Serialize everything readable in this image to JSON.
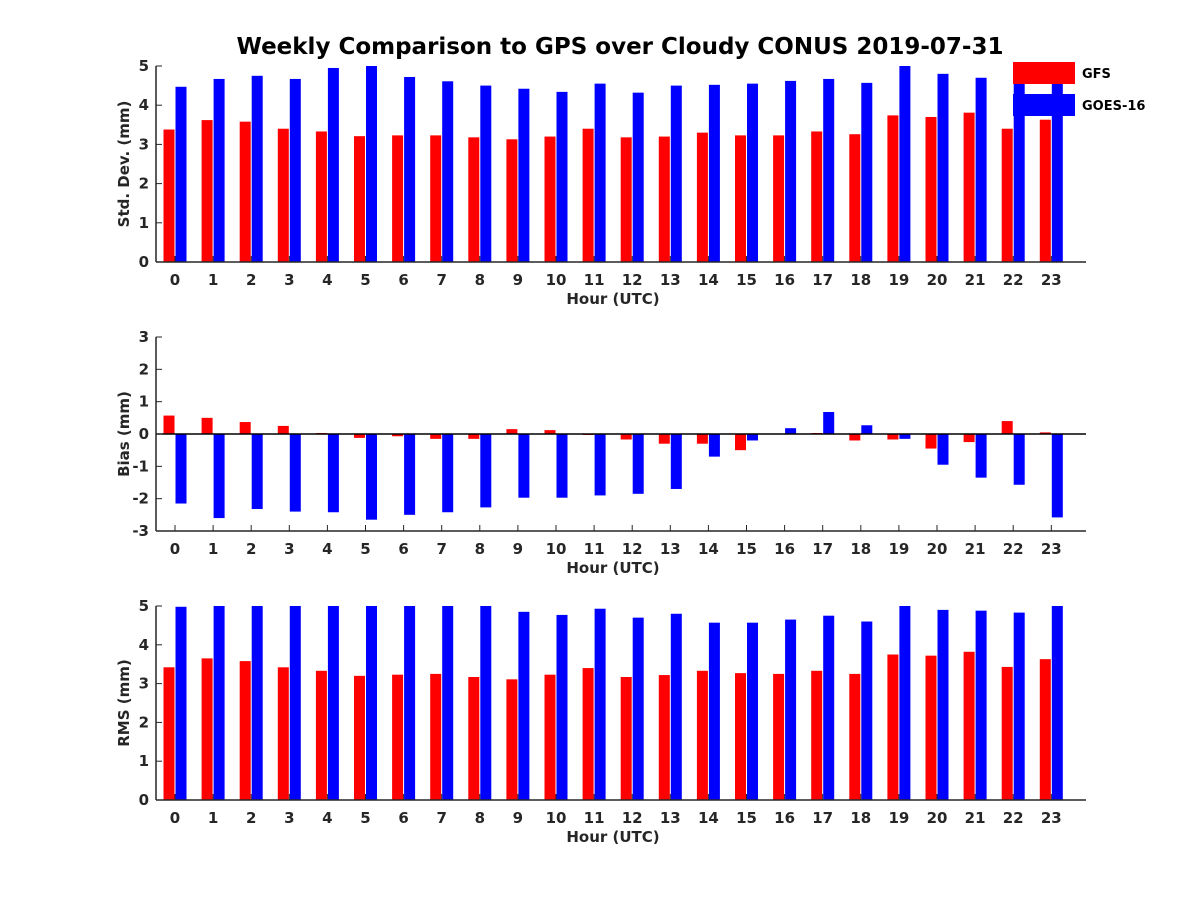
{
  "figure": {
    "title": "Weekly Comparison to GPS over Cloudy CONUS 2019-07-31"
  },
  "legend": {
    "placement": "top-right, outside first panel",
    "entries": [
      {
        "label": "GFS",
        "color": "#ff0000"
      },
      {
        "label": "GOES-16",
        "color": "#0000ff"
      }
    ]
  },
  "chart_data": [
    {
      "type": "bar",
      "categories": [
        "0",
        "1",
        "2",
        "3",
        "4",
        "5",
        "6",
        "7",
        "8",
        "9",
        "10",
        "11",
        "12",
        "13",
        "14",
        "15",
        "16",
        "17",
        "18",
        "19",
        "20",
        "21",
        "22",
        "23"
      ],
      "xlabel": "Hour (UTC)",
      "ylabel": "Std. Dev. (mm)",
      "ylim": [
        0,
        5
      ],
      "yticks": [
        "0",
        "1",
        "2",
        "3",
        "4",
        "5"
      ],
      "grid": false,
      "series": [
        {
          "name": "GFS",
          "color": "#ff0000",
          "values": [
            3.38,
            3.62,
            3.58,
            3.4,
            3.33,
            3.21,
            3.23,
            3.23,
            3.18,
            3.13,
            3.2,
            3.4,
            3.18,
            3.2,
            3.3,
            3.23,
            3.23,
            3.33,
            3.26,
            3.74,
            3.7,
            3.81,
            3.4,
            3.63
          ]
        },
        {
          "name": "GOES-16",
          "color": "#0000ff",
          "values": [
            4.47,
            4.67,
            4.75,
            4.67,
            4.95,
            5.0,
            4.72,
            4.61,
            4.5,
            4.42,
            4.34,
            4.55,
            4.32,
            4.5,
            4.52,
            4.55,
            4.62,
            4.67,
            4.57,
            5.0,
            4.8,
            4.7,
            4.55,
            4.62
          ]
        }
      ]
    },
    {
      "type": "bar",
      "categories": [
        "0",
        "1",
        "2",
        "3",
        "4",
        "5",
        "6",
        "7",
        "8",
        "9",
        "10",
        "11",
        "12",
        "13",
        "14",
        "15",
        "16",
        "17",
        "18",
        "19",
        "20",
        "21",
        "22",
        "23"
      ],
      "xlabel": "Hour (UTC)",
      "ylabel": "Bias (mm)",
      "ylim": [
        -3,
        3
      ],
      "yticks": [
        "-3",
        "-2",
        "-1",
        "0",
        "1",
        "2",
        "3"
      ],
      "grid": false,
      "zero_line": true,
      "series": [
        {
          "name": "GFS",
          "color": "#ff0000",
          "values": [
            0.57,
            0.5,
            0.37,
            0.25,
            0.03,
            -0.12,
            -0.07,
            -0.15,
            -0.15,
            0.15,
            0.12,
            -0.03,
            -0.17,
            -0.3,
            -0.3,
            -0.5,
            0.0,
            0.03,
            -0.2,
            -0.17,
            -0.45,
            -0.25,
            0.4,
            0.05
          ]
        },
        {
          "name": "GOES-16",
          "color": "#0000ff",
          "values": [
            -2.15,
            -2.6,
            -2.32,
            -2.4,
            -2.42,
            -2.65,
            -2.5,
            -2.42,
            -2.27,
            -1.97,
            -1.97,
            -1.9,
            -1.85,
            -1.7,
            -0.7,
            -0.2,
            0.18,
            0.68,
            0.27,
            -0.15,
            -0.95,
            -1.35,
            -1.57,
            -2.58
          ]
        }
      ]
    },
    {
      "type": "bar",
      "categories": [
        "0",
        "1",
        "2",
        "3",
        "4",
        "5",
        "6",
        "7",
        "8",
        "9",
        "10",
        "11",
        "12",
        "13",
        "14",
        "15",
        "16",
        "17",
        "18",
        "19",
        "20",
        "21",
        "22",
        "23"
      ],
      "xlabel": "Hour (UTC)",
      "ylabel": "RMS (mm)",
      "ylim": [
        0,
        5
      ],
      "yticks": [
        "0",
        "1",
        "2",
        "3",
        "4",
        "5"
      ],
      "grid": false,
      "series": [
        {
          "name": "GFS",
          "color": "#ff0000",
          "values": [
            3.42,
            3.65,
            3.58,
            3.42,
            3.33,
            3.2,
            3.23,
            3.25,
            3.17,
            3.11,
            3.23,
            3.4,
            3.17,
            3.22,
            3.33,
            3.27,
            3.25,
            3.33,
            3.25,
            3.75,
            3.72,
            3.82,
            3.43,
            3.63
          ]
        },
        {
          "name": "GOES-16",
          "color": "#0000ff",
          "values": [
            4.98,
            5.0,
            5.0,
            5.0,
            5.0,
            5.0,
            5.0,
            5.0,
            5.0,
            4.85,
            4.77,
            4.93,
            4.7,
            4.8,
            4.57,
            4.57,
            4.65,
            4.75,
            4.6,
            5.0,
            4.9,
            4.88,
            4.83,
            5.0
          ]
        }
      ]
    }
  ]
}
